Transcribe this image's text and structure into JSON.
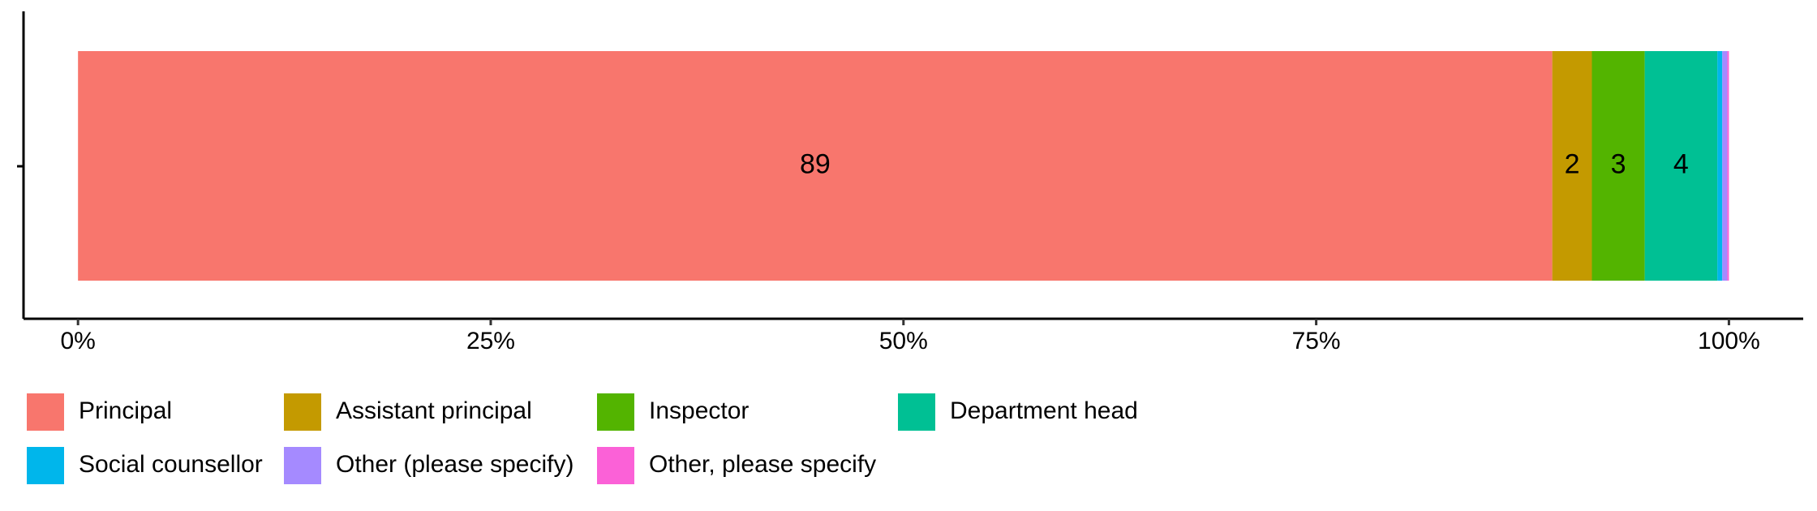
{
  "chart_data": {
    "type": "stacked-bar-horizontal",
    "series": [
      {
        "name": "Principal",
        "color": "#f8766d",
        "values": [
          89.3
        ],
        "value_labels": [
          "89"
        ]
      },
      {
        "name": "Assistant principal",
        "color": "#c49a00",
        "values": [
          2.4
        ],
        "value_labels": [
          "2"
        ]
      },
      {
        "name": "Inspector",
        "color": "#53b400",
        "values": [
          3.2
        ],
        "value_labels": [
          "3"
        ]
      },
      {
        "name": "Department head",
        "color": "#00c094",
        "values": [
          4.4
        ],
        "value_labels": [
          "4"
        ]
      },
      {
        "name": "Social counsellor",
        "color": "#00b6eb",
        "values": [
          0.3
        ],
        "value_labels": [
          null
        ]
      },
      {
        "name": "Other (please specify)",
        "color": "#a58aff",
        "values": [
          0.3
        ],
        "value_labels": [
          null
        ]
      },
      {
        "name": "Other, please specify",
        "color": "#fb61d7",
        "values": [
          0.1
        ],
        "value_labels": [
          null
        ]
      }
    ],
    "xlim": [
      -3.3,
      104.5
    ],
    "xticks": [
      {
        "value": 0,
        "label": "0%"
      },
      {
        "value": 25,
        "label": "25%"
      },
      {
        "value": 50,
        "label": "50%"
      },
      {
        "value": 75,
        "label": "75%"
      },
      {
        "value": 100,
        "label": "100%"
      }
    ],
    "legend": "bottom"
  }
}
